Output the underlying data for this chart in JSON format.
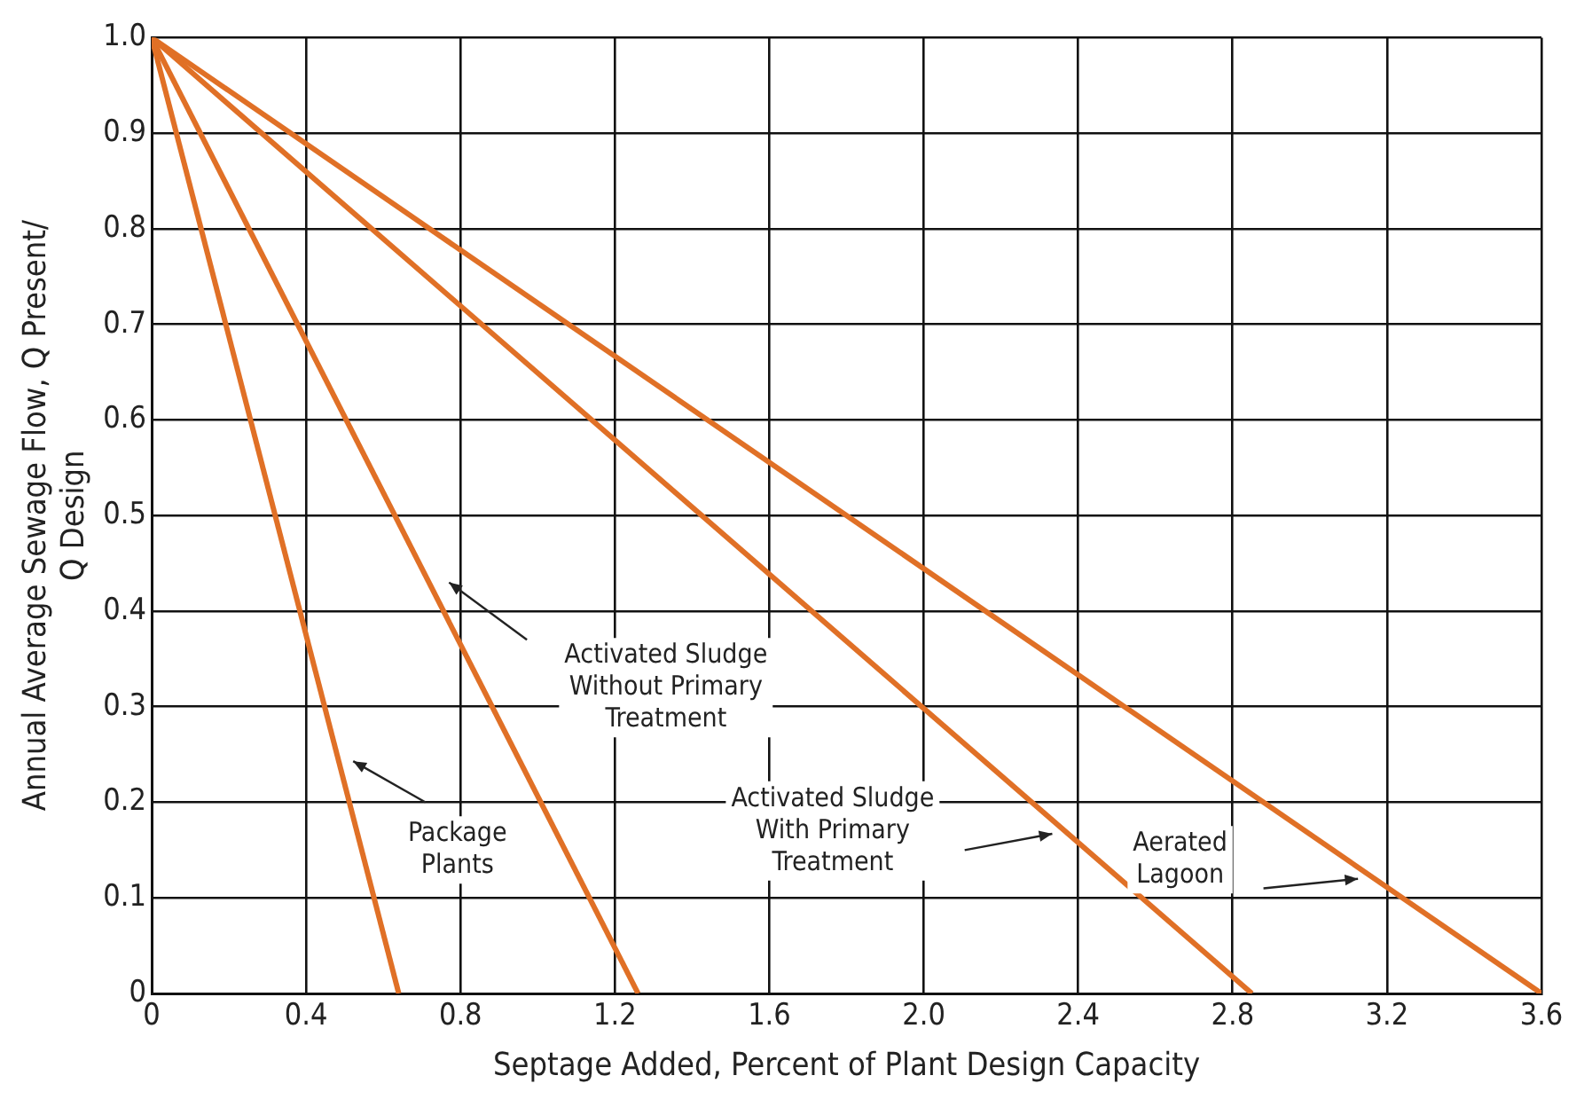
{
  "chart_data": {
    "type": "line",
    "xlabel": "Septage Added, Percent of Plant Design Capacity",
    "ylabel": "Annual Average Sewage Flow, Q Present/\nQ Design",
    "series": [
      {
        "type": "line",
        "color": "#e07026",
        "x": [
          0,
          0.64
        ],
        "values": [
          1.0,
          0
        ]
      },
      {
        "type": "line",
        "color": "#e07026",
        "x": [
          0,
          1.26
        ],
        "values": [
          1.0,
          0
        ]
      },
      {
        "type": "line",
        "color": "#e07026",
        "x": [
          0,
          2.85
        ],
        "values": [
          1.0,
          0
        ]
      },
      {
        "type": "line",
        "color": "#e07026",
        "x": [
          0,
          3.6
        ],
        "values": [
          1.0,
          0
        ]
      }
    ],
    "xlim": [
      0,
      3.6
    ],
    "xticks": [
      {
        "value": 0,
        "label": "0"
      },
      0.4,
      0.8,
      1.2,
      1.6,
      {
        "value": 2,
        "label": "2.0"
      },
      2.4,
      2.8,
      3.2,
      3.6
    ],
    "ylim": [
      0,
      1
    ],
    "yticks": [
      {
        "value": 0,
        "label": "0"
      },
      0.1,
      0.2,
      0.3,
      0.4,
      0.5,
      0.6,
      0.7,
      0.8,
      0.9,
      {
        "value": 1,
        "label": "1.0"
      }
    ],
    "grid": true,
    "legend": false,
    "marker": "none",
    "line_style": "solid",
    "annotations": [
      "Package\nPlants",
      "Activated Sludge\nWithout Primary\nTreatment",
      "Activated Sludge\nWith Primary\nTreatment",
      "Aerated\nLagoon"
    ]
  }
}
